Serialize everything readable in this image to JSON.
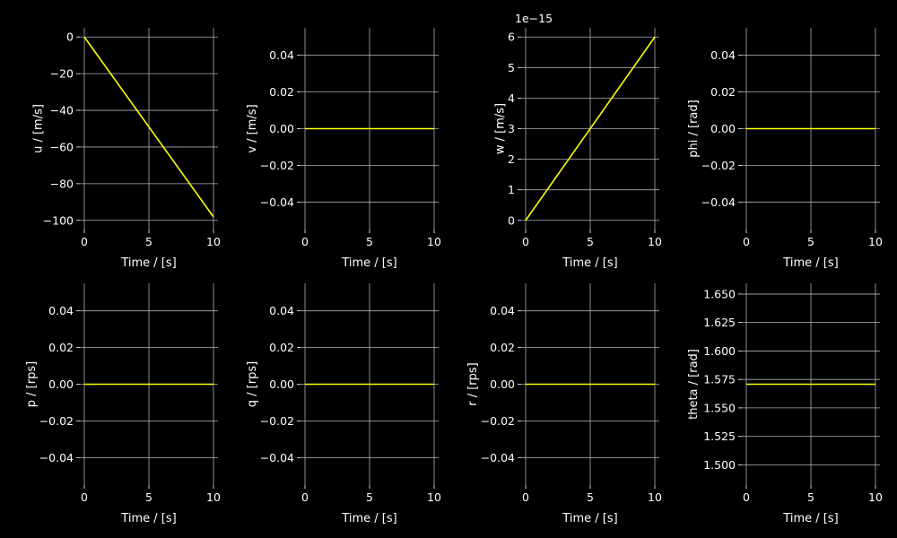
{
  "figure": {
    "background": "#000000",
    "line_color": "#ffff00",
    "grid_color": "#b0b0b0",
    "text_color": "#ffffff"
  },
  "chart_data": [
    {
      "id": "u",
      "type": "line",
      "xlabel": "Time / [s]",
      "ylabel": "u / [m/s]",
      "xlim": [
        0,
        10
      ],
      "ylim": [
        -105,
        5
      ],
      "xticks": [
        0,
        5,
        10
      ],
      "xtick_labels": [
        "0",
        "5",
        "10"
      ],
      "yticks": [
        0,
        -20,
        -40,
        -60,
        -80,
        -100
      ],
      "ytick_labels": [
        "0",
        "−20",
        "−40",
        "−60",
        "−80",
        "−100"
      ],
      "offset_text": "",
      "grid": true,
      "x": [
        0,
        10
      ],
      "y": [
        0,
        -98.1
      ]
    },
    {
      "id": "v",
      "type": "line",
      "xlabel": "Time / [s]",
      "ylabel": "v / [m/s]",
      "xlim": [
        0,
        10
      ],
      "ylim": [
        -0.055,
        0.055
      ],
      "xticks": [
        0,
        5,
        10
      ],
      "xtick_labels": [
        "0",
        "5",
        "10"
      ],
      "yticks": [
        0.04,
        0.02,
        0.0,
        -0.02,
        -0.04
      ],
      "ytick_labels": [
        "0.04",
        "0.02",
        "0.00",
        "−0.02",
        "−0.04"
      ],
      "offset_text": "",
      "grid": true,
      "x": [
        0,
        10
      ],
      "y": [
        0,
        0
      ]
    },
    {
      "id": "w",
      "type": "line",
      "xlabel": "Time / [s]",
      "ylabel": "w / [m/s]",
      "xlim": [
        0,
        10
      ],
      "ylim": [
        -0.3,
        6.3
      ],
      "xticks": [
        0,
        5,
        10
      ],
      "xtick_labels": [
        "0",
        "5",
        "10"
      ],
      "yticks": [
        0,
        1,
        2,
        3,
        4,
        5,
        6
      ],
      "ytick_labels": [
        "0",
        "1",
        "2",
        "3",
        "4",
        "5",
        "6"
      ],
      "offset_text": "1e−15",
      "grid": true,
      "x": [
        0,
        10
      ],
      "y": [
        0,
        6
      ]
    },
    {
      "id": "phi",
      "type": "line",
      "xlabel": "Time / [s]",
      "ylabel": "phi / [rad]",
      "xlim": [
        0,
        10
      ],
      "ylim": [
        -0.055,
        0.055
      ],
      "xticks": [
        0,
        5,
        10
      ],
      "xtick_labels": [
        "0",
        "5",
        "10"
      ],
      "yticks": [
        0.04,
        0.02,
        0.0,
        -0.02,
        -0.04
      ],
      "ytick_labels": [
        "0.04",
        "0.02",
        "0.00",
        "−0.02",
        "−0.04"
      ],
      "offset_text": "",
      "grid": true,
      "x": [
        0,
        10
      ],
      "y": [
        0,
        0
      ]
    },
    {
      "id": "p",
      "type": "line",
      "xlabel": "Time / [s]",
      "ylabel": "p / [rps]",
      "xlim": [
        0,
        10
      ],
      "ylim": [
        -0.055,
        0.055
      ],
      "xticks": [
        0,
        5,
        10
      ],
      "xtick_labels": [
        "0",
        "5",
        "10"
      ],
      "yticks": [
        0.04,
        0.02,
        0.0,
        -0.02,
        -0.04
      ],
      "ytick_labels": [
        "0.04",
        "0.02",
        "0.00",
        "−0.02",
        "−0.04"
      ],
      "offset_text": "",
      "grid": true,
      "x": [
        0,
        10
      ],
      "y": [
        0,
        0
      ]
    },
    {
      "id": "q",
      "type": "line",
      "xlabel": "Time / [s]",
      "ylabel": "q / [rps]",
      "xlim": [
        0,
        10
      ],
      "ylim": [
        -0.055,
        0.055
      ],
      "xticks": [
        0,
        5,
        10
      ],
      "xtick_labels": [
        "0",
        "5",
        "10"
      ],
      "yticks": [
        0.04,
        0.02,
        0.0,
        -0.02,
        -0.04
      ],
      "ytick_labels": [
        "0.04",
        "0.02",
        "0.00",
        "−0.02",
        "−0.04"
      ],
      "offset_text": "",
      "grid": true,
      "x": [
        0,
        10
      ],
      "y": [
        0,
        0
      ]
    },
    {
      "id": "r",
      "type": "line",
      "xlabel": "Time / [s]",
      "ylabel": "r / [rps]",
      "xlim": [
        0,
        10
      ],
      "ylim": [
        -0.055,
        0.055
      ],
      "xticks": [
        0,
        5,
        10
      ],
      "xtick_labels": [
        "0",
        "5",
        "10"
      ],
      "yticks": [
        0.04,
        0.02,
        0.0,
        -0.02,
        -0.04
      ],
      "ytick_labels": [
        "0.04",
        "0.02",
        "0.00",
        "−0.02",
        "−0.04"
      ],
      "offset_text": "",
      "grid": true,
      "x": [
        0,
        10
      ],
      "y": [
        0,
        0
      ]
    },
    {
      "id": "theta",
      "type": "line",
      "xlabel": "Time / [s]",
      "ylabel": "theta / [rad]",
      "xlim": [
        0,
        10
      ],
      "ylim": [
        1.4822,
        1.6594
      ],
      "xticks": [
        0,
        5,
        10
      ],
      "xtick_labels": [
        "0",
        "5",
        "10"
      ],
      "yticks": [
        1.65,
        1.625,
        1.6,
        1.575,
        1.55,
        1.525,
        1.5
      ],
      "ytick_labels": [
        "1.650",
        "1.625",
        "1.600",
        "1.575",
        "1.550",
        "1.525",
        "1.500"
      ],
      "offset_text": "",
      "grid": true,
      "x": [
        0,
        10
      ],
      "y": [
        1.5708,
        1.5708
      ]
    }
  ]
}
